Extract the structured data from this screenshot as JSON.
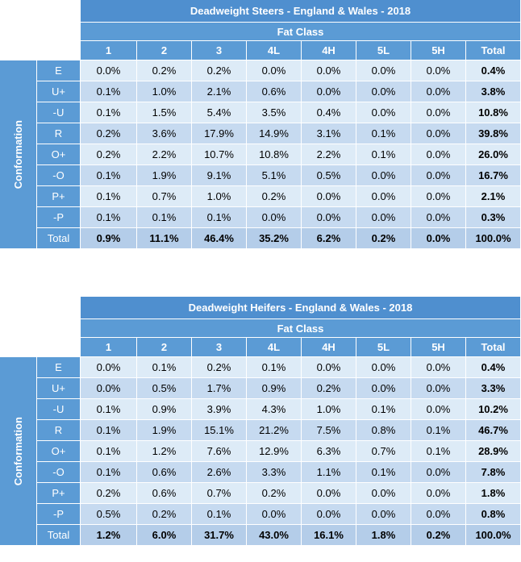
{
  "tables": [
    {
      "title": "Deadweight Steers - England & Wales - 2018",
      "group_header": "Fat Class",
      "row_group_label": "Conformation",
      "columns": [
        "1",
        "2",
        "3",
        "4L",
        "4H",
        "5L",
        "5H",
        "Total"
      ],
      "rows": [
        {
          "label": "E",
          "cells": [
            "0.0%",
            "0.2%",
            "0.2%",
            "0.0%",
            "0.0%",
            "0.0%",
            "0.0%",
            "0.4%"
          ]
        },
        {
          "label": "U+",
          "cells": [
            "0.1%",
            "1.0%",
            "2.1%",
            "0.6%",
            "0.0%",
            "0.0%",
            "0.0%",
            "3.8%"
          ]
        },
        {
          "label": "-U",
          "cells": [
            "0.1%",
            "1.5%",
            "5.4%",
            "3.5%",
            "0.4%",
            "0.0%",
            "0.0%",
            "10.8%"
          ]
        },
        {
          "label": "R",
          "cells": [
            "0.2%",
            "3.6%",
            "17.9%",
            "14.9%",
            "3.1%",
            "0.1%",
            "0.0%",
            "39.8%"
          ]
        },
        {
          "label": "O+",
          "cells": [
            "0.2%",
            "2.2%",
            "10.7%",
            "10.8%",
            "2.2%",
            "0.1%",
            "0.0%",
            "26.0%"
          ]
        },
        {
          "label": "-O",
          "cells": [
            "0.1%",
            "1.9%",
            "9.1%",
            "5.1%",
            "0.5%",
            "0.0%",
            "0.0%",
            "16.7%"
          ]
        },
        {
          "label": "P+",
          "cells": [
            "0.1%",
            "0.7%",
            "1.0%",
            "0.2%",
            "0.0%",
            "0.0%",
            "0.0%",
            "2.1%"
          ]
        },
        {
          "label": "-P",
          "cells": [
            "0.1%",
            "0.1%",
            "0.1%",
            "0.0%",
            "0.0%",
            "0.0%",
            "0.0%",
            "0.3%"
          ]
        },
        {
          "label": "Total",
          "cells": [
            "0.9%",
            "11.1%",
            "46.4%",
            "35.2%",
            "6.2%",
            "0.2%",
            "0.0%",
            "100.0%"
          ]
        }
      ]
    },
    {
      "title": "Deadweight Heifers - England & Wales - 2018",
      "group_header": "Fat Class",
      "row_group_label": "Conformation",
      "columns": [
        "1",
        "2",
        "3",
        "4L",
        "4H",
        "5L",
        "5H",
        "Total"
      ],
      "rows": [
        {
          "label": "E",
          "cells": [
            "0.0%",
            "0.1%",
            "0.2%",
            "0.1%",
            "0.0%",
            "0.0%",
            "0.0%",
            "0.4%"
          ]
        },
        {
          "label": "U+",
          "cells": [
            "0.0%",
            "0.5%",
            "1.7%",
            "0.9%",
            "0.2%",
            "0.0%",
            "0.0%",
            "3.3%"
          ]
        },
        {
          "label": "-U",
          "cells": [
            "0.1%",
            "0.9%",
            "3.9%",
            "4.3%",
            "1.0%",
            "0.1%",
            "0.0%",
            "10.2%"
          ]
        },
        {
          "label": "R",
          "cells": [
            "0.1%",
            "1.9%",
            "15.1%",
            "21.2%",
            "7.5%",
            "0.8%",
            "0.1%",
            "46.7%"
          ]
        },
        {
          "label": "O+",
          "cells": [
            "0.1%",
            "1.2%",
            "7.6%",
            "12.9%",
            "6.3%",
            "0.7%",
            "0.1%",
            "28.9%"
          ]
        },
        {
          "label": "-O",
          "cells": [
            "0.1%",
            "0.6%",
            "2.6%",
            "3.3%",
            "1.1%",
            "0.1%",
            "0.0%",
            "7.8%"
          ]
        },
        {
          "label": "P+",
          "cells": [
            "0.2%",
            "0.6%",
            "0.7%",
            "0.2%",
            "0.0%",
            "0.0%",
            "0.0%",
            "1.8%"
          ]
        },
        {
          "label": "-P",
          "cells": [
            "0.5%",
            "0.2%",
            "0.1%",
            "0.0%",
            "0.0%",
            "0.0%",
            "0.0%",
            "0.8%"
          ]
        },
        {
          "label": "Total",
          "cells": [
            "1.2%",
            "6.0%",
            "31.7%",
            "43.0%",
            "16.1%",
            "1.8%",
            "0.2%",
            "100.0%"
          ]
        }
      ]
    }
  ]
}
